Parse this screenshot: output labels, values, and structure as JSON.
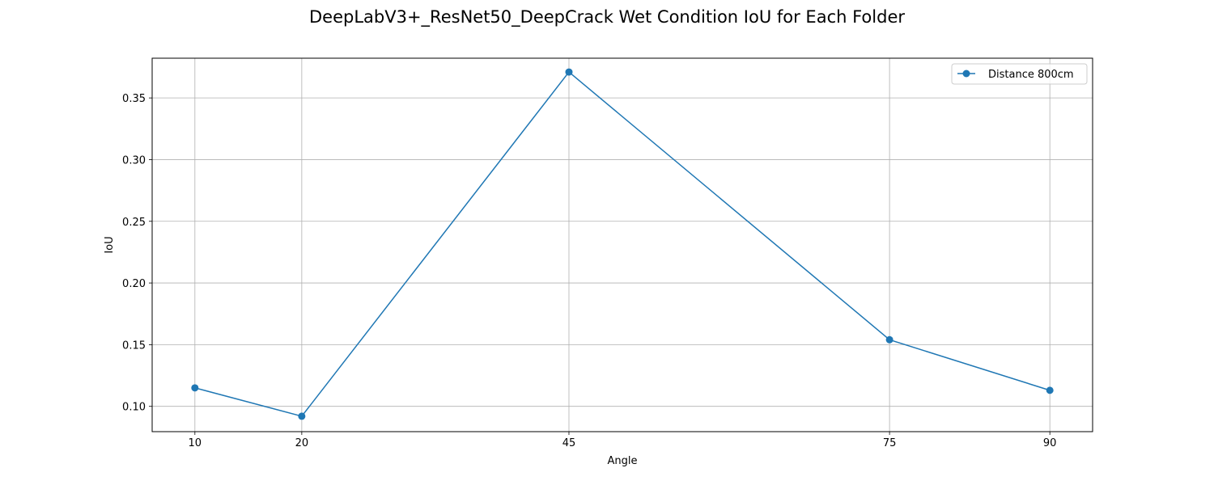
{
  "chart_data": {
    "type": "line",
    "title": "DeepLabV3+_ResNet50_DeepCrack Wet Condition IoU for Each Folder",
    "xlabel": "Angle",
    "ylabel": "IoU",
    "x": [
      10,
      20,
      45,
      75,
      90
    ],
    "xticks": [
      "10",
      "20",
      "45",
      "75",
      "90"
    ],
    "yticks": [
      "0.10",
      "0.15",
      "0.20",
      "0.25",
      "0.30",
      "0.35"
    ],
    "ytick_values": [
      0.1,
      0.15,
      0.2,
      0.25,
      0.3,
      0.35
    ],
    "xlim": [
      6,
      94
    ],
    "ylim": [
      0.0795,
      0.3822
    ],
    "grid": true,
    "legend_position": "top-right",
    "series": [
      {
        "name": "Distance 800cm",
        "color": "#1f77b4",
        "marker": "circle",
        "values": [
          0.115,
          0.092,
          0.371,
          0.154,
          0.113
        ]
      }
    ]
  }
}
